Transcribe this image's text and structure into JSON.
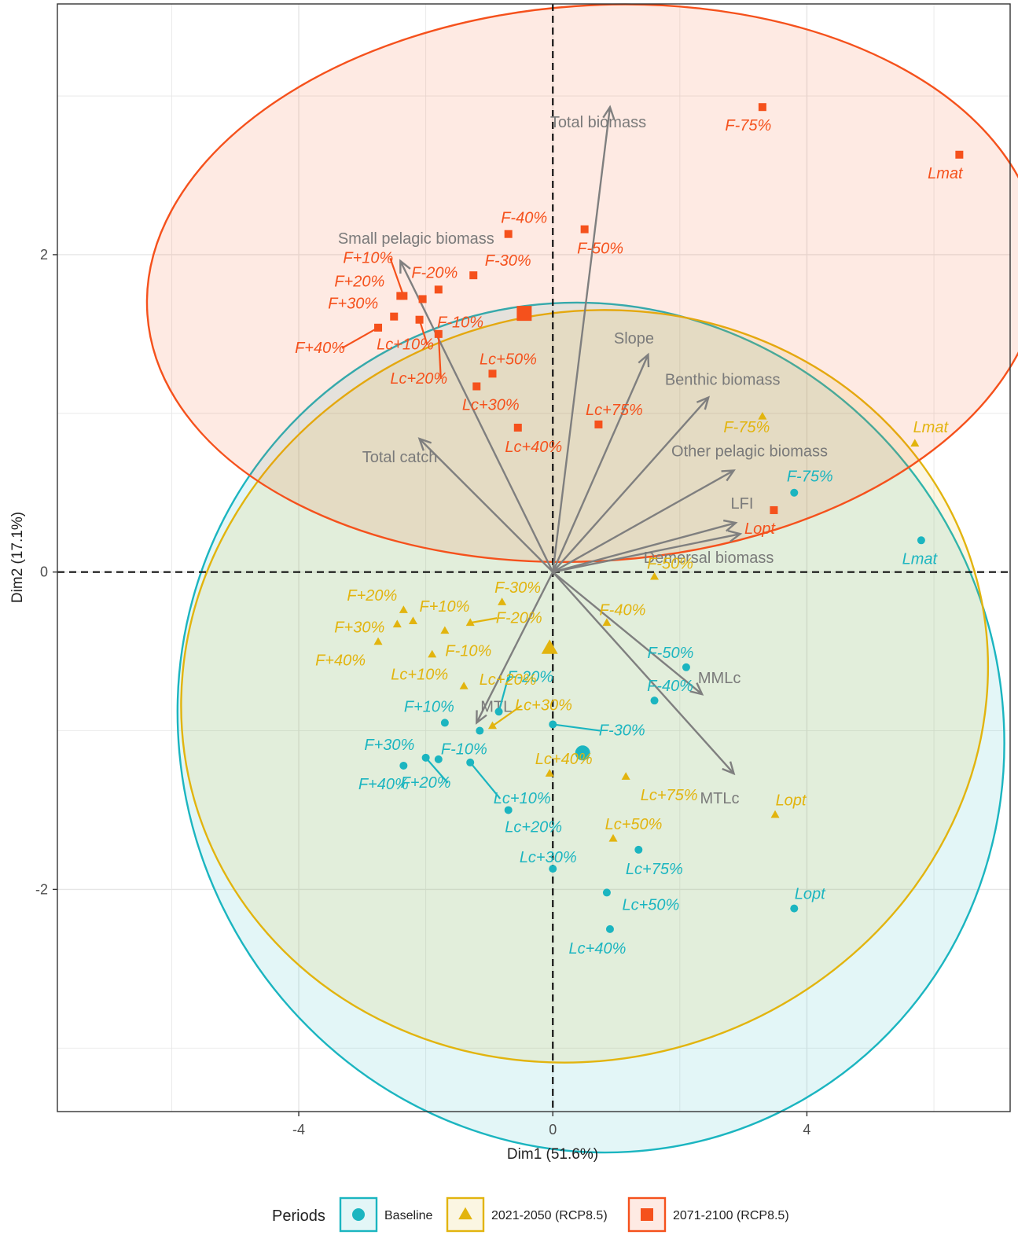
{
  "chart_data": {
    "type": "scatter",
    "xlabel": "Dim1 (51.6%)",
    "ylabel": "Dim2 (17.1%)",
    "xlim": [
      -7.8,
      7.2
    ],
    "ylim": [
      -3.4,
      3.58
    ],
    "x_ticks": [
      -4,
      0,
      4
    ],
    "y_ticks": [
      -2,
      0,
      2
    ],
    "x_tick_labels": [
      "-4",
      "0",
      "4"
    ],
    "y_tick_labels": [
      "-2",
      "0",
      "2"
    ],
    "grid": true,
    "reference_lines": [
      0,
      0
    ],
    "legend": {
      "title": "Periods",
      "placement": "bottom",
      "items": [
        {
          "label": "Baseline",
          "color": "#1BB5C0",
          "shape": "circle"
        },
        {
          "label": "2021-2050 (RCP8.5)",
          "color": "#E2B40E",
          "shape": "triangle"
        },
        {
          "label": "2071-2100 (RCP8.5)",
          "color": "#F5511C",
          "shape": "square"
        }
      ]
    },
    "variables": [
      {
        "label": "Total biomass",
        "x": 0.9,
        "y": 2.93
      },
      {
        "label": "Small pelagic biomass",
        "x": -2.4,
        "y": 1.96
      },
      {
        "label": "Slope",
        "x": 1.5,
        "y": 1.37
      },
      {
        "label": "Benthic biomass",
        "x": 2.45,
        "y": 1.1
      },
      {
        "label": "Total catch",
        "x": -2.1,
        "y": 0.84
      },
      {
        "label": "Other pelagic biomass",
        "x": 2.85,
        "y": 0.64
      },
      {
        "label": "LFI",
        "x": 2.88,
        "y": 0.31
      },
      {
        "label": "Demersal biomass",
        "x": 2.95,
        "y": 0.24
      },
      {
        "label": "MMLc",
        "x": 2.35,
        "y": -0.77
      },
      {
        "label": "MTLc",
        "x": 2.85,
        "y": -1.27
      },
      {
        "label": "MTL",
        "x": -1.2,
        "y": -0.95
      }
    ],
    "series": [
      {
        "name": "Baseline",
        "color": "#1BB5C0",
        "centroid": [
          0.47,
          -1.14
        ],
        "ellipse": {
          "cx": 0.6,
          "cy": -0.98,
          "rx": 6.45,
          "ry": 2.7,
          "angle": 26
        },
        "points": [
          {
            "x": 3.8,
            "y": 0.5,
            "label": "F-75%"
          },
          {
            "x": 5.8,
            "y": 0.2,
            "label": "Lmat"
          },
          {
            "x": 2.1,
            "y": -0.6,
            "label": "F-50%"
          },
          {
            "x": 1.6,
            "y": -0.81,
            "label": "F-40%"
          },
          {
            "x": -0.85,
            "y": -0.88,
            "label": "F-20%"
          },
          {
            "x": 0.0,
            "y": -0.96,
            "label": "F-30%"
          },
          {
            "x": -1.7,
            "y": -0.95,
            "label": "F+10%"
          },
          {
            "x": -2.0,
            "y": -1.17,
            "label": "F+20%"
          },
          {
            "x": -2.35,
            "y": -1.22,
            "label": "F+30%"
          },
          {
            "x": -1.8,
            "y": -1.18,
            "label": "F+40%"
          },
          {
            "x": -1.15,
            "y": -1.0,
            "label": "F-10%"
          },
          {
            "x": -1.3,
            "y": -1.2,
            "label": "Lc+10%"
          },
          {
            "x": -0.7,
            "y": -1.5,
            "label": "Lc+20%"
          },
          {
            "x": 0.0,
            "y": -1.87,
            "label": "Lc+30%"
          },
          {
            "x": 1.35,
            "y": -1.75,
            "label": "Lc+75%"
          },
          {
            "x": 0.85,
            "y": -2.02,
            "label": "Lc+50%"
          },
          {
            "x": 0.9,
            "y": -2.25,
            "label": "Lc+40%"
          },
          {
            "x": 3.8,
            "y": -2.12,
            "label": "Lopt"
          }
        ]
      },
      {
        "name": "2021-2050 (RCP8.5)",
        "color": "#E2B40E",
        "centroid": [
          -0.05,
          -0.48
        ],
        "ellipse": {
          "cx": 0.5,
          "cy": -0.72,
          "rx": 6.4,
          "ry": 2.35,
          "angle": 18
        },
        "points": [
          {
            "x": 3.3,
            "y": 0.98,
            "label": "F-75%"
          },
          {
            "x": 5.7,
            "y": 0.81,
            "label": "Lmat"
          },
          {
            "x": 1.6,
            "y": -0.03,
            "label": "F-50%"
          },
          {
            "x": 0.85,
            "y": -0.32,
            "label": "F-40%"
          },
          {
            "x": -0.8,
            "y": -0.19,
            "label": "F-30%"
          },
          {
            "x": -1.3,
            "y": -0.32,
            "label": "F-20%"
          },
          {
            "x": -2.35,
            "y": -0.24,
            "label": "F+20%"
          },
          {
            "x": -2.2,
            "y": -0.31,
            "label": "F+10%"
          },
          {
            "x": -2.45,
            "y": -0.33,
            "label": "F+30%"
          },
          {
            "x": -1.7,
            "y": -0.37,
            "label": "F-10%"
          },
          {
            "x": -2.75,
            "y": -0.44,
            "label": "F+40%"
          },
          {
            "x": -1.9,
            "y": -0.52,
            "label": "Lc+10%"
          },
          {
            "x": -1.4,
            "y": -0.72,
            "label": "Lc+20%"
          },
          {
            "x": -0.95,
            "y": -0.97,
            "label": "Lc+30%"
          },
          {
            "x": -0.05,
            "y": -1.27,
            "label": "Lc+40%"
          },
          {
            "x": 1.15,
            "y": -1.29,
            "label": "Lc+75%"
          },
          {
            "x": 0.95,
            "y": -1.68,
            "label": "Lc+50%"
          },
          {
            "x": 3.5,
            "y": -1.53,
            "label": "Lopt"
          }
        ]
      },
      {
        "name": "2071-2100 (RCP8.5)",
        "color": "#F5511C",
        "centroid": [
          -0.45,
          1.63
        ],
        "ellipse": {
          "cx": 0.65,
          "cy": 1.82,
          "rx": 7.05,
          "ry": 1.75,
          "angle": 4
        },
        "points": [
          {
            "x": 3.3,
            "y": 2.93,
            "label": "F-75%"
          },
          {
            "x": 6.4,
            "y": 2.63,
            "label": "Lmat"
          },
          {
            "x": -0.7,
            "y": 2.13,
            "label": "F-40%"
          },
          {
            "x": 0.5,
            "y": 2.16,
            "label": "F-50%"
          },
          {
            "x": -1.25,
            "y": 1.87,
            "label": "F-30%"
          },
          {
            "x": -1.8,
            "y": 1.78,
            "label": "F-20%"
          },
          {
            "x": -2.35,
            "y": 1.74,
            "label": "F+10%"
          },
          {
            "x": -2.4,
            "y": 1.74,
            "label": "F+20%"
          },
          {
            "x": -2.05,
            "y": 1.72,
            "label": "F-10%"
          },
          {
            "x": -2.5,
            "y": 1.61,
            "label": "F+30%"
          },
          {
            "x": -2.75,
            "y": 1.54,
            "label": "F+40%"
          },
          {
            "x": -2.1,
            "y": 1.59,
            "label": "Lc+10%"
          },
          {
            "x": -1.8,
            "y": 1.5,
            "label": "Lc+20%"
          },
          {
            "x": -0.95,
            "y": 1.25,
            "label": "Lc+50%"
          },
          {
            "x": -1.2,
            "y": 1.17,
            "label": "Lc+30%"
          },
          {
            "x": -0.55,
            "y": 0.91,
            "label": "Lc+40%"
          },
          {
            "x": 0.72,
            "y": 0.93,
            "label": "Lc+75%"
          },
          {
            "x": 3.48,
            "y": 0.39,
            "label": "Lopt"
          }
        ]
      }
    ]
  }
}
